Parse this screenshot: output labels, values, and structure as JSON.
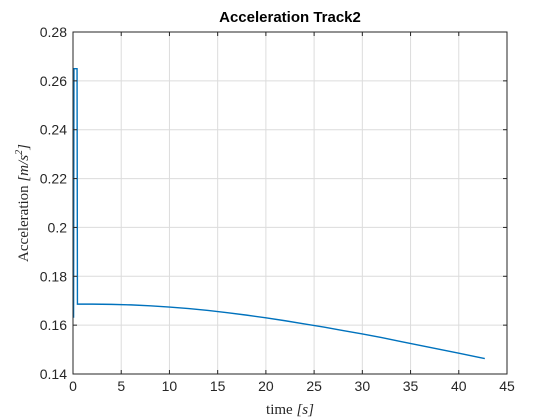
{
  "chart_data": {
    "type": "line",
    "title": "Acceleration Track2",
    "xlabel_main": "time ",
    "xlabel_unit": "[s]",
    "ylabel_main": "Acceleration ",
    "ylabel_unit_pre": "[m/s",
    "ylabel_unit_sup": "2",
    "ylabel_unit_post": "]",
    "xlim": [
      0,
      45
    ],
    "ylim": [
      0.14,
      0.28
    ],
    "x_ticks": [
      0,
      5,
      10,
      15,
      20,
      25,
      30,
      35,
      40,
      45
    ],
    "x_tick_labels": [
      "0",
      "5",
      "10",
      "15",
      "20",
      "25",
      "30",
      "35",
      "40",
      "45"
    ],
    "y_ticks": [
      0.14,
      0.16,
      0.18,
      0.2,
      0.22,
      0.24,
      0.26,
      0.28
    ],
    "y_tick_labels": [
      "0.14",
      "0.16",
      "0.18",
      "0.2",
      "0.22",
      "0.24",
      "0.26",
      "0.28"
    ],
    "grid": true,
    "series": [
      {
        "color": "#0072BD",
        "x": [
          0.02,
          0.06,
          0.1,
          0.14,
          0.18,
          0.22,
          0.26,
          0.3,
          0.34,
          0.38,
          0.42,
          0.46,
          0.5,
          1,
          2,
          4,
          6,
          8,
          10,
          12,
          14,
          16,
          18,
          20,
          22,
          24,
          26,
          28,
          30,
          32,
          34,
          36,
          38,
          40,
          42,
          42.7
        ],
        "y": [
          0.265,
          0.163,
          0.265,
          0.265,
          0.265,
          0.265,
          0.265,
          0.265,
          0.265,
          0.265,
          0.265,
          0.1686,
          0.1686,
          0.1686,
          0.1686,
          0.1685,
          0.1683,
          0.1679,
          0.1674,
          0.1668,
          0.166,
          0.1651,
          0.1641,
          0.163,
          0.1618,
          0.1605,
          0.1592,
          0.1578,
          0.1564,
          0.1549,
          0.1533,
          0.1517,
          0.1501,
          0.1485,
          0.1469,
          0.1463
        ]
      }
    ]
  }
}
